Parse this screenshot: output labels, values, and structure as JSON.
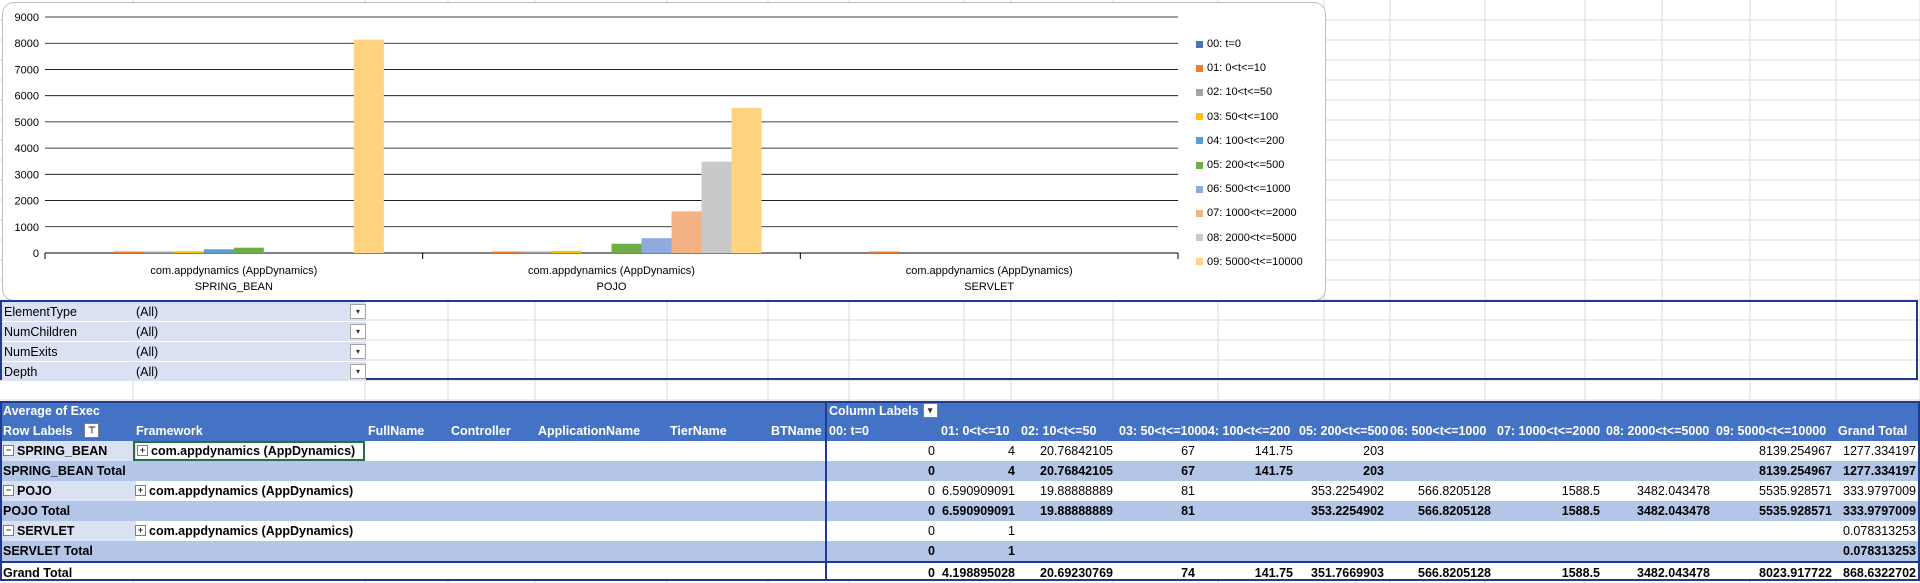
{
  "colors": {
    "pivot_header": "#4472c4",
    "pivot_light": "#d9e1f2",
    "pivot_medium": "#b4c6e7",
    "pivot_border": "#1f3a93",
    "gridline": "#d9d9d9"
  },
  "chart_data": {
    "type": "bar",
    "categories": [
      [
        "com.appdynamics (AppDynamics)",
        "SPRING_BEAN"
      ],
      [
        "com.appdynamics (AppDynamics)",
        "POJO"
      ],
      [
        "com.appdynamics (AppDynamics)",
        "SERVLET"
      ]
    ],
    "ylim": [
      0,
      9000
    ],
    "yticks": [
      0,
      1000,
      2000,
      3000,
      4000,
      5000,
      6000,
      7000,
      8000,
      9000
    ],
    "grid": true,
    "legend_position": "right",
    "series": [
      {
        "name": "00: t=0",
        "color": "#4472c4",
        "values": [
          0,
          0,
          0
        ]
      },
      {
        "name": "01: 0<t<=10",
        "color": "#ed7d31",
        "values": [
          4,
          6.590909091,
          1
        ]
      },
      {
        "name": "02: 10<t<=50",
        "color": "#a5a5a5",
        "values": [
          20.76842105,
          19.88888889,
          null
        ]
      },
      {
        "name": "03: 50<t<=100",
        "color": "#ffc000",
        "values": [
          67,
          81,
          null
        ]
      },
      {
        "name": "04: 100<t<=200",
        "color": "#5b9bd5",
        "values": [
          141.75,
          null,
          null
        ]
      },
      {
        "name": "05: 200<t<=500",
        "color": "#70ad47",
        "values": [
          203,
          353.2254902,
          null
        ]
      },
      {
        "name": "06: 500<t<=1000",
        "color": "#8faadc",
        "values": [
          null,
          566.8205128,
          null
        ]
      },
      {
        "name": "07: 1000<t<=2000",
        "color": "#f4b183",
        "values": [
          null,
          1588.5,
          null
        ]
      },
      {
        "name": "08: 2000<t<=5000",
        "color": "#c9c9c9",
        "values": [
          null,
          3482.043478,
          null
        ]
      },
      {
        "name": "09: 5000<t<=10000",
        "color": "#ffd37f",
        "values": [
          8139.254967,
          5535.928571,
          null
        ]
      }
    ]
  },
  "filters": [
    {
      "label": "ElementType",
      "value": "(All)"
    },
    {
      "label": "NumChildren",
      "value": "(All)"
    },
    {
      "label": "NumExits",
      "value": "(All)"
    },
    {
      "label": "Depth",
      "value": "(All)"
    }
  ],
  "pivot": {
    "title": "Average of Exec",
    "column_labels": "Column Labels",
    "row_labels": "Row Labels",
    "row_headers": [
      "Framework",
      "FullName",
      "Controller",
      "ApplicationName",
      "TierName",
      "BTName"
    ],
    "value_headers": [
      "00: t=0",
      "01: 0<t<=10",
      "02: 10<t<=50",
      "03: 50<t<=100",
      "04: 100<t<=200",
      "05: 200<t<=500",
      "06: 500<t<=1000",
      "07: 1000<t<=2000",
      "08: 2000<t<=5000",
      "09: 5000<t<=10000",
      "Grand Total"
    ],
    "rows": [
      {
        "label": "SPRING_BEAN",
        "framework": "com.appdynamics (AppDynamics)",
        "kind": "group",
        "values": [
          "0",
          "4",
          "20.76842105",
          "67",
          "141.75",
          "203",
          "",
          "",
          "",
          "8139.254967",
          "1277.334197"
        ]
      },
      {
        "label": "SPRING_BEAN Total",
        "framework": "",
        "kind": "total",
        "values": [
          "0",
          "4",
          "20.76842105",
          "67",
          "141.75",
          "203",
          "",
          "",
          "",
          "8139.254967",
          "1277.334197"
        ]
      },
      {
        "label": "POJO",
        "framework": "com.appdynamics (AppDynamics)",
        "kind": "group",
        "values": [
          "0",
          "6.590909091",
          "19.88888889",
          "81",
          "",
          "353.2254902",
          "566.8205128",
          "1588.5",
          "3482.043478",
          "5535.928571",
          "333.9797009"
        ]
      },
      {
        "label": "POJO Total",
        "framework": "",
        "kind": "total",
        "values": [
          "0",
          "6.590909091",
          "19.88888889",
          "81",
          "",
          "353.2254902",
          "566.8205128",
          "1588.5",
          "3482.043478",
          "5535.928571",
          "333.9797009"
        ]
      },
      {
        "label": "SERVLET",
        "framework": "com.appdynamics (AppDynamics)",
        "kind": "group",
        "values": [
          "0",
          "1",
          "",
          "",
          "",
          "",
          "",
          "",
          "",
          "",
          "0.078313253"
        ]
      },
      {
        "label": "SERVLET Total",
        "framework": "",
        "kind": "total",
        "values": [
          "0",
          "1",
          "",
          "",
          "",
          "",
          "",
          "",
          "",
          "",
          "0.078313253"
        ]
      },
      {
        "label": "Grand Total",
        "framework": "",
        "kind": "grand",
        "values": [
          "0",
          "4.198895028",
          "20.69230769",
          "74",
          "141.75",
          "351.7669903",
          "566.8205128",
          "1588.5",
          "3482.043478",
          "8023.917722",
          "868.6322702"
        ]
      }
    ]
  }
}
